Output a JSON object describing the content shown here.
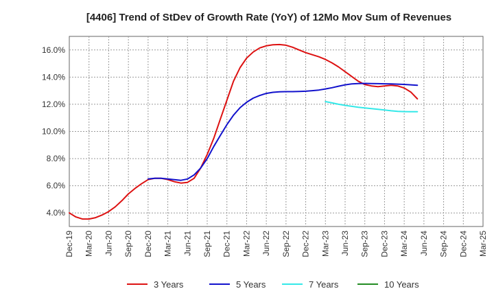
{
  "chart_data": {
    "type": "line",
    "title": "[4406]  Trend of StDev of Growth Rate (YoY) of 12Mo Mov Sum of Revenues",
    "xlabel": "",
    "ylabel": "",
    "ylim": [
      3.0,
      17.0
    ],
    "y_ticks": [
      4,
      6,
      8,
      10,
      12,
      14,
      16
    ],
    "y_tick_labels": [
      "4.0%",
      "6.0%",
      "8.0%",
      "10.0%",
      "12.0%",
      "14.0%",
      "16.0%"
    ],
    "x_tick_labels": [
      "Dec-19",
      "Mar-20",
      "Jun-20",
      "Sep-20",
      "Dec-20",
      "Mar-21",
      "Jun-21",
      "Sep-21",
      "Dec-21",
      "Mar-22",
      "Jun-22",
      "Sep-22",
      "Dec-22",
      "Mar-23",
      "Jun-23",
      "Sep-23",
      "Dec-23",
      "Mar-24",
      "Jun-24",
      "Sep-24",
      "Dec-24",
      "Mar-25"
    ],
    "grid": true,
    "legend_position": "bottom",
    "series": [
      {
        "name": "3 Years",
        "color": "#dd1111",
        "start_month": 0,
        "values": [
          4.0,
          3.7,
          3.55,
          3.55,
          3.65,
          3.85,
          4.1,
          4.45,
          4.9,
          5.4,
          5.8,
          6.15,
          6.45,
          6.55,
          6.55,
          6.45,
          6.3,
          6.2,
          6.25,
          6.55,
          7.3,
          8.3,
          9.5,
          10.9,
          12.3,
          13.7,
          14.7,
          15.4,
          15.85,
          16.15,
          16.3,
          16.38,
          16.4,
          16.35,
          16.2,
          16.0,
          15.8,
          15.65,
          15.5,
          15.3,
          15.05,
          14.75,
          14.4,
          14.05,
          13.7,
          13.45,
          13.35,
          13.3,
          13.35,
          13.4,
          13.35,
          13.2,
          12.9,
          12.4
        ]
      },
      {
        "name": "5 Years",
        "color": "#1111cc",
        "start_month": 12,
        "values": [
          6.5,
          6.55,
          6.55,
          6.5,
          6.45,
          6.4,
          6.5,
          6.8,
          7.3,
          8.0,
          8.9,
          9.7,
          10.5,
          11.2,
          11.75,
          12.15,
          12.45,
          12.65,
          12.8,
          12.88,
          12.92,
          12.93,
          12.93,
          12.94,
          12.96,
          13.0,
          13.05,
          13.13,
          13.22,
          13.33,
          13.43,
          13.5,
          13.53,
          13.54,
          13.53,
          13.52,
          13.51,
          13.5,
          13.48,
          13.46,
          13.43,
          13.4
        ]
      },
      {
        "name": "7 Years",
        "color": "#33e8e8",
        "start_month": 39,
        "values": [
          12.2,
          12.1,
          12.0,
          11.92,
          11.85,
          11.78,
          11.73,
          11.68,
          11.63,
          11.58,
          11.52,
          11.48,
          11.46,
          11.45,
          11.45
        ]
      },
      {
        "name": "10 Years",
        "color": "#228b22",
        "start_month": 0,
        "values": []
      }
    ]
  }
}
